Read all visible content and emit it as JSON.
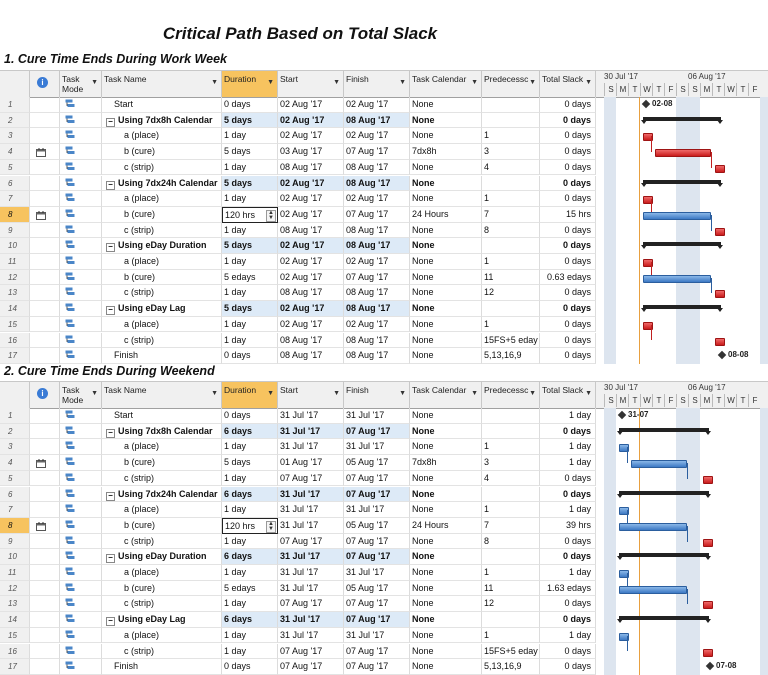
{
  "main_title": "Critical Path Based on Total Slack",
  "sections": [
    {
      "title": "1. Cure Time Ends During Work Week",
      "timeline": {
        "week1": "30 Jul '17",
        "week2": "06 Aug '17",
        "days": [
          "S",
          "M",
          "T",
          "W",
          "T",
          "F",
          "S",
          "S",
          "M",
          "T",
          "W",
          "T",
          "F"
        ]
      },
      "rows": [
        {
          "id": "1",
          "name": "Start",
          "duration": "0 days",
          "start": "02 Aug '17",
          "finish": "02 Aug '17",
          "calendar": "None",
          "pred": "",
          "slack": "0 days"
        },
        {
          "id": "2",
          "name": "Using 7dx8h Calendar",
          "duration": "5 days",
          "start": "02 Aug '17",
          "finish": "08 Aug '17",
          "calendar": "None",
          "pred": "",
          "slack": "0 days",
          "summary": true
        },
        {
          "id": "3",
          "name": "a (place)",
          "duration": "1 day",
          "start": "02 Aug '17",
          "finish": "02 Aug '17",
          "calendar": "None",
          "pred": "1",
          "slack": "0 days"
        },
        {
          "id": "4",
          "name": "b (cure)",
          "duration": "5 days",
          "start": "03 Aug '17",
          "finish": "07 Aug '17",
          "calendar": "7dx8h",
          "pred": "3",
          "slack": "0 days",
          "note": true
        },
        {
          "id": "5",
          "name": "c (strip)",
          "duration": "1 day",
          "start": "08 Aug '17",
          "finish": "08 Aug '17",
          "calendar": "None",
          "pred": "4",
          "slack": "0 days"
        },
        {
          "id": "6",
          "name": "Using 7dx24h Calendar",
          "duration": "5 days",
          "start": "02 Aug '17",
          "finish": "08 Aug '17",
          "calendar": "None",
          "pred": "",
          "slack": "0 days",
          "summary": true
        },
        {
          "id": "7",
          "name": "a (place)",
          "duration": "1 day",
          "start": "02 Aug '17",
          "finish": "02 Aug '17",
          "calendar": "None",
          "pred": "1",
          "slack": "0 days"
        },
        {
          "id": "8",
          "name": "b (cure)",
          "duration": "120 hrs",
          "start": "02 Aug '17",
          "finish": "07 Aug '17",
          "calendar": "24 Hours",
          "pred": "7",
          "slack": "15 hrs",
          "note": true,
          "selected": true
        },
        {
          "id": "9",
          "name": "c (strip)",
          "duration": "1 day",
          "start": "08 Aug '17",
          "finish": "08 Aug '17",
          "calendar": "None",
          "pred": "8",
          "slack": "0 days"
        },
        {
          "id": "10",
          "name": "Using eDay Duration",
          "duration": "5 days",
          "start": "02 Aug '17",
          "finish": "08 Aug '17",
          "calendar": "None",
          "pred": "",
          "slack": "0 days",
          "summary": true
        },
        {
          "id": "11",
          "name": "a (place)",
          "duration": "1 day",
          "start": "02 Aug '17",
          "finish": "02 Aug '17",
          "calendar": "None",
          "pred": "1",
          "slack": "0 days"
        },
        {
          "id": "12",
          "name": "b (cure)",
          "duration": "5 edays",
          "start": "02 Aug '17",
          "finish": "07 Aug '17",
          "calendar": "None",
          "pred": "11",
          "slack": "0.63 edays"
        },
        {
          "id": "13",
          "name": "c (strip)",
          "duration": "1 day",
          "start": "08 Aug '17",
          "finish": "08 Aug '17",
          "calendar": "None",
          "pred": "12",
          "slack": "0 days"
        },
        {
          "id": "14",
          "name": "Using eDay Lag",
          "duration": "5 days",
          "start": "02 Aug '17",
          "finish": "08 Aug '17",
          "calendar": "None",
          "pred": "",
          "slack": "0 days",
          "summary": true
        },
        {
          "id": "15",
          "name": "a (place)",
          "duration": "1 day",
          "start": "02 Aug '17",
          "finish": "02 Aug '17",
          "calendar": "None",
          "pred": "1",
          "slack": "0 days"
        },
        {
          "id": "16",
          "name": "c (strip)",
          "duration": "1 day",
          "start": "08 Aug '17",
          "finish": "08 Aug '17",
          "calendar": "None",
          "pred": "15FS+5 eday",
          "slack": "0 days"
        },
        {
          "id": "17",
          "name": "Finish",
          "duration": "0 days",
          "start": "08 Aug '17",
          "finish": "08 Aug '17",
          "calendar": "None",
          "pred": "5,13,16,9",
          "slack": "0 days"
        }
      ],
      "milestones": {
        "start": "02-08",
        "finish": "08-08"
      }
    },
    {
      "title": "2. Cure Time Ends During Weekend",
      "timeline": {
        "week1": "30 Jul '17",
        "week2": "06 Aug '17",
        "days": [
          "S",
          "M",
          "T",
          "W",
          "T",
          "F",
          "S",
          "S",
          "M",
          "T",
          "W",
          "T",
          "F"
        ]
      },
      "rows": [
        {
          "id": "1",
          "name": "Start",
          "duration": "0 days",
          "start": "31 Jul '17",
          "finish": "31 Jul '17",
          "calendar": "None",
          "pred": "",
          "slack": "1 day"
        },
        {
          "id": "2",
          "name": "Using 7dx8h Calendar",
          "duration": "6 days",
          "start": "31 Jul '17",
          "finish": "07 Aug '17",
          "calendar": "None",
          "pred": "",
          "slack": "0 days",
          "summary": true
        },
        {
          "id": "3",
          "name": "a (place)",
          "duration": "1 day",
          "start": "31 Jul '17",
          "finish": "31 Jul '17",
          "calendar": "None",
          "pred": "1",
          "slack": "1 day"
        },
        {
          "id": "4",
          "name": "b (cure)",
          "duration": "5 days",
          "start": "01 Aug '17",
          "finish": "05 Aug '17",
          "calendar": "7dx8h",
          "pred": "3",
          "slack": "1 day",
          "note": true
        },
        {
          "id": "5",
          "name": "c (strip)",
          "duration": "1 day",
          "start": "07 Aug '17",
          "finish": "07 Aug '17",
          "calendar": "None",
          "pred": "4",
          "slack": "0 days"
        },
        {
          "id": "6",
          "name": "Using 7dx24h Calendar",
          "duration": "6 days",
          "start": "31 Jul '17",
          "finish": "07 Aug '17",
          "calendar": "None",
          "pred": "",
          "slack": "0 days",
          "summary": true
        },
        {
          "id": "7",
          "name": "a (place)",
          "duration": "1 day",
          "start": "31 Jul '17",
          "finish": "31 Jul '17",
          "calendar": "None",
          "pred": "1",
          "slack": "1 day"
        },
        {
          "id": "8",
          "name": "b (cure)",
          "duration": "120 hrs",
          "start": "31 Jul '17",
          "finish": "05 Aug '17",
          "calendar": "24 Hours",
          "pred": "7",
          "slack": "39 hrs",
          "note": true,
          "selected": true
        },
        {
          "id": "9",
          "name": "c (strip)",
          "duration": "1 day",
          "start": "07 Aug '17",
          "finish": "07 Aug '17",
          "calendar": "None",
          "pred": "8",
          "slack": "0 days"
        },
        {
          "id": "10",
          "name": "Using eDay Duration",
          "duration": "6 days",
          "start": "31 Jul '17",
          "finish": "07 Aug '17",
          "calendar": "None",
          "pred": "",
          "slack": "0 days",
          "summary": true
        },
        {
          "id": "11",
          "name": "a (place)",
          "duration": "1 day",
          "start": "31 Jul '17",
          "finish": "31 Jul '17",
          "calendar": "None",
          "pred": "1",
          "slack": "1 day"
        },
        {
          "id": "12",
          "name": "b (cure)",
          "duration": "5 edays",
          "start": "31 Jul '17",
          "finish": "05 Aug '17",
          "calendar": "None",
          "pred": "11",
          "slack": "1.63 edays"
        },
        {
          "id": "13",
          "name": "c (strip)",
          "duration": "1 day",
          "start": "07 Aug '17",
          "finish": "07 Aug '17",
          "calendar": "None",
          "pred": "12",
          "slack": "0 days"
        },
        {
          "id": "14",
          "name": "Using eDay Lag",
          "duration": "6 days",
          "start": "31 Jul '17",
          "finish": "07 Aug '17",
          "calendar": "None",
          "pred": "",
          "slack": "0 days",
          "summary": true
        },
        {
          "id": "15",
          "name": "a (place)",
          "duration": "1 day",
          "start": "31 Jul '17",
          "finish": "31 Jul '17",
          "calendar": "None",
          "pred": "1",
          "slack": "1 day"
        },
        {
          "id": "16",
          "name": "c (strip)",
          "duration": "1 day",
          "start": "07 Aug '17",
          "finish": "07 Aug '17",
          "calendar": "None",
          "pred": "15FS+5 eday",
          "slack": "0 days"
        },
        {
          "id": "17",
          "name": "Finish",
          "duration": "0 days",
          "start": "07 Aug '17",
          "finish": "07 Aug '17",
          "calendar": "None",
          "pred": "5,13,16,9",
          "slack": "0 days"
        }
      ],
      "milestones": {
        "start": "31-07",
        "finish": "07-08"
      }
    }
  ],
  "columns": {
    "info": "i",
    "mode": "Task Mode",
    "name": "Task Name",
    "duration": "Duration",
    "start": "Start",
    "finish": "Finish",
    "calendar": "Task Calendar",
    "pred": "Predecessc",
    "slack": "Total Slack"
  },
  "colors": {
    "critical": "#c91c1c",
    "noncritical": "#3d79c4",
    "selected": "#f7c35f",
    "weekend": "#dde5ef"
  }
}
